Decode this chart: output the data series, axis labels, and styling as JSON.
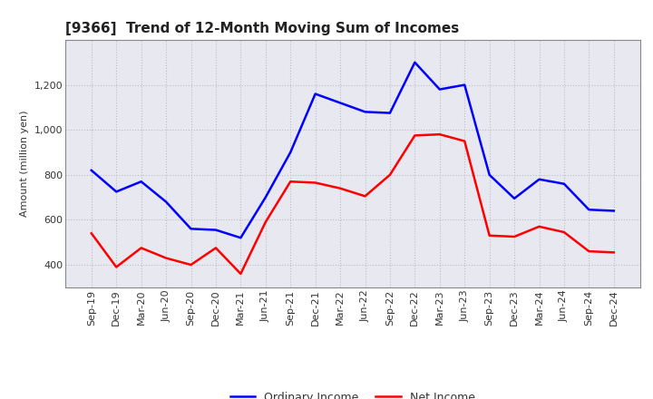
{
  "title": "[9366]  Trend of 12-Month Moving Sum of Incomes",
  "ylabel": "Amount (million yen)",
  "labels": [
    "Sep-19",
    "Dec-19",
    "Mar-20",
    "Jun-20",
    "Sep-20",
    "Dec-20",
    "Mar-21",
    "Jun-21",
    "Sep-21",
    "Dec-21",
    "Mar-22",
    "Jun-22",
    "Sep-22",
    "Dec-22",
    "Mar-23",
    "Jun-23",
    "Sep-23",
    "Dec-23",
    "Mar-24",
    "Jun-24",
    "Sep-24",
    "Dec-24"
  ],
  "ordinary_income": [
    820,
    725,
    770,
    680,
    560,
    555,
    520,
    700,
    900,
    1160,
    1120,
    1080,
    1075,
    1300,
    1180,
    1200,
    800,
    695,
    780,
    760,
    645,
    640
  ],
  "net_income": [
    540,
    390,
    475,
    430,
    400,
    475,
    360,
    590,
    770,
    765,
    740,
    705,
    800,
    975,
    980,
    950,
    530,
    525,
    570,
    545,
    460,
    455
  ],
  "ordinary_income_color": "#0000FF",
  "net_income_color": "#FF0000",
  "ylim_min": 300,
  "ylim_max": 1400,
  "yticks": [
    400,
    600,
    800,
    1000,
    1200
  ],
  "plot_bg_color": "#E8E8F0",
  "fig_bg_color": "#FFFFFF",
  "grid_color": "#BBBBCC",
  "title_fontsize": 11,
  "axis_fontsize": 8,
  "ylabel_fontsize": 8,
  "legend_ordinary": "Ordinary Income",
  "legend_net": "Net Income",
  "legend_fontsize": 9
}
